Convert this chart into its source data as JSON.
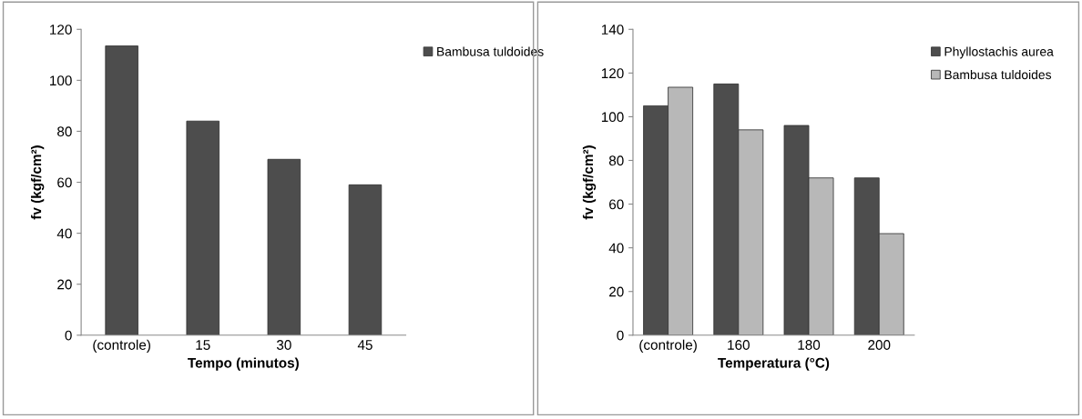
{
  "chart_data": [
    {
      "type": "bar",
      "categories": [
        "(controle)",
        "15",
        "30",
        "45"
      ],
      "xlabel": "Tempo (minutos)",
      "ylabel": "fv (kgf/cm²)",
      "ylim": [
        0,
        120
      ],
      "yticks": [
        0,
        20,
        40,
        60,
        80,
        100,
        120
      ],
      "grid": false,
      "legend": "top right",
      "series": [
        {
          "name": "Bambusa tuldoides",
          "color": "#4d4d4d",
          "values": [
            113.5,
            84,
            69,
            59
          ]
        }
      ]
    },
    {
      "type": "bar",
      "categories": [
        "(controle)",
        "160",
        "180",
        "200"
      ],
      "xlabel": "Temperatura (°C)",
      "ylabel": "fv (kgf/cm²)",
      "ylim": [
        0,
        140
      ],
      "yticks": [
        0,
        20,
        40,
        60,
        80,
        100,
        120,
        140
      ],
      "grid": false,
      "legend": "top right",
      "series": [
        {
          "name": "Phyllostachis aurea",
          "color": "#4d4d4d",
          "values": [
            105,
            115,
            96,
            72
          ]
        },
        {
          "name": "Bambusa tuldoides",
          "color": "#b8b8b8",
          "values": [
            113.5,
            94,
            72,
            46.5
          ]
        }
      ]
    }
  ]
}
